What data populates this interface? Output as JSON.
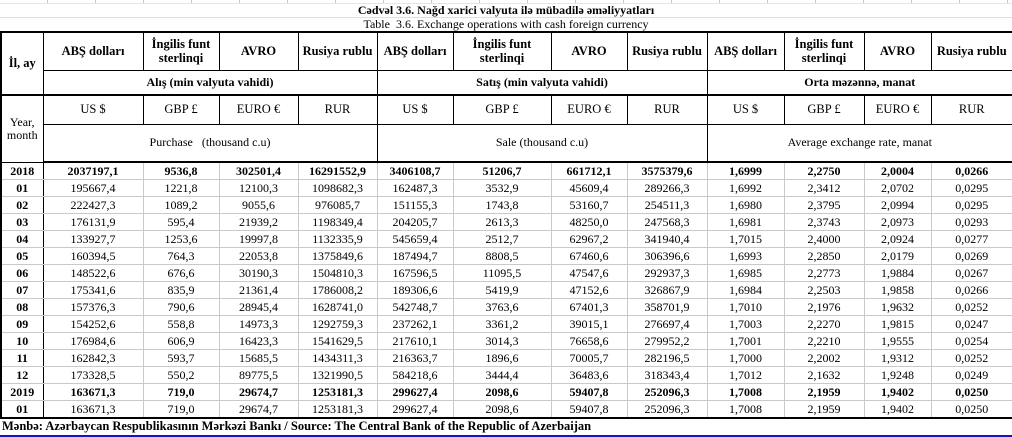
{
  "page": {
    "title_az": "Cədvəl 3.6. Nağd xarici valyuta ilə mübadilə əməliyyatları",
    "title_en": "Table  3.6. Exchange operations with cash foreign currency",
    "source_note": "Mənbə: Azərbaycan Respublikasının Mərkəzi Bankı / Source: The Central Bank of the Republic of Azerbaijan",
    "source_underline_color": "#1515bd"
  },
  "table": {
    "period_header_az": "İl, ay",
    "period_header_en": "Year, month",
    "currencies_az": [
      "ABŞ dolları",
      "İngilis funt sterlinqi",
      "AVRO",
      "Rusiya rublu"
    ],
    "currencies_en": [
      "US $",
      "GBP £",
      "EURO €",
      "RUR"
    ],
    "groups": [
      {
        "az": "Alış (min valyuta vahidi)",
        "en": "Purchase   (thousand c.u)"
      },
      {
        "az": "Satış (min valyuta vahidi)",
        "en": "Sale (thousand c.u)"
      },
      {
        "az": "Orta məzənnə, manat",
        "en": "Average exchange rate, manat"
      }
    ],
    "rows": [
      {
        "period": "2018",
        "year": true,
        "values": [
          "2037197,1",
          "9536,8",
          "302501,4",
          "16291552,9",
          "3406108,7",
          "51206,7",
          "661712,1",
          "3575379,6",
          "1,6999",
          "2,2750",
          "2,0004",
          "0,0266"
        ]
      },
      {
        "period": "01",
        "values": [
          "195667,4",
          "1221,8",
          "12100,3",
          "1098682,3",
          "162487,3",
          "3532,9",
          "45609,4",
          "289266,3",
          "1,6992",
          "2,3412",
          "2,0702",
          "0,0295"
        ]
      },
      {
        "period": "02",
        "values": [
          "222427,3",
          "1089,2",
          "9055,6",
          "976085,7",
          "151155,3",
          "1743,8",
          "53160,7",
          "254511,3",
          "1,6980",
          "2,3795",
          "2,0994",
          "0,0295"
        ]
      },
      {
        "period": "03",
        "values": [
          "176131,9",
          "595,4",
          "21939,2",
          "1198349,4",
          "204205,7",
          "2613,3",
          "48250,0",
          "247568,3",
          "1,6981",
          "2,3743",
          "2,0973",
          "0,0293"
        ]
      },
      {
        "period": "04",
        "values": [
          "133927,7",
          "1253,6",
          "19997,8",
          "1132335,9",
          "545659,4",
          "2512,7",
          "62967,2",
          "341940,4",
          "1,7015",
          "2,4000",
          "2,0924",
          "0,0277"
        ]
      },
      {
        "period": "05",
        "values": [
          "160394,5",
          "764,3",
          "22053,8",
          "1375849,6",
          "187494,7",
          "8808,5",
          "67460,6",
          "306396,6",
          "1,6993",
          "2,2850",
          "2,0179",
          "0,0269"
        ]
      },
      {
        "period": "06",
        "values": [
          "148522,6",
          "676,6",
          "30190,3",
          "1504810,3",
          "167596,5",
          "11095,5",
          "47547,6",
          "292937,3",
          "1,6985",
          "2,2773",
          "1,9884",
          "0,0267"
        ]
      },
      {
        "period": "07",
        "values": [
          "175341,6",
          "835,9",
          "21361,4",
          "1786008,2",
          "189306,6",
          "5419,9",
          "47152,6",
          "326867,9",
          "1,6984",
          "2,2503",
          "1,9858",
          "0,0266"
        ]
      },
      {
        "period": "08",
        "values": [
          "157376,3",
          "790,6",
          "28945,4",
          "1628741,0",
          "542748,7",
          "3763,6",
          "67401,3",
          "358701,9",
          "1,7010",
          "2,1976",
          "1,9632",
          "0,0252"
        ]
      },
      {
        "period": "09",
        "values": [
          "154252,6",
          "558,8",
          "14973,3",
          "1292759,3",
          "237262,1",
          "3361,2",
          "39015,1",
          "276697,4",
          "1,7003",
          "2,2270",
          "1,9815",
          "0,0247"
        ]
      },
      {
        "period": "10",
        "values": [
          "176984,6",
          "606,9",
          "16423,3",
          "1541629,5",
          "217610,1",
          "3014,3",
          "76658,6",
          "279952,2",
          "1,7001",
          "2,2210",
          "1,9555",
          "0,0254"
        ]
      },
      {
        "period": "11",
        "values": [
          "162842,3",
          "593,7",
          "15685,5",
          "1434311,3",
          "216363,7",
          "1896,6",
          "70005,7",
          "282196,5",
          "1,7000",
          "2,2002",
          "1,9312",
          "0,0252"
        ]
      },
      {
        "period": "12",
        "values": [
          "173328,5",
          "550,2",
          "89775,5",
          "1321990,5",
          "584218,6",
          "3444,4",
          "36483,6",
          "318343,4",
          "1,7012",
          "2,1632",
          "1,9248",
          "0,0249"
        ]
      },
      {
        "period": "2019",
        "year": true,
        "black_top": true,
        "values": [
          "163671,3",
          "719,0",
          "29674,7",
          "1253181,3",
          "299627,4",
          "2098,6",
          "59407,8",
          "252096,3",
          "1,7008",
          "2,1959",
          "1,9402",
          "0,0250"
        ]
      },
      {
        "period": "01",
        "black_top": true,
        "values": [
          "163671,3",
          "719,0",
          "29674,7",
          "1253181,3",
          "299627,4",
          "2098,6",
          "59407,8",
          "252096,3",
          "1,7008",
          "2,1959",
          "1,9402",
          "0,0250"
        ]
      }
    ]
  }
}
